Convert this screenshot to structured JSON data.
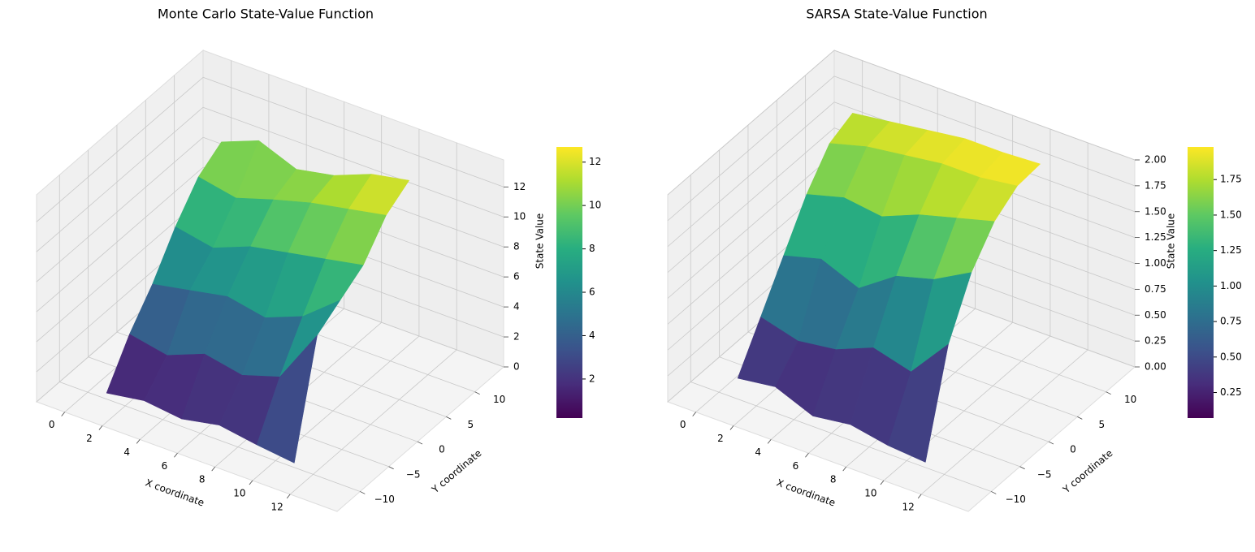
{
  "chart_data": [
    {
      "type": "surface",
      "title": "Monte Carlo State-Value Function",
      "xlabel": "X coordinate",
      "ylabel": "Y coordinate",
      "zlabel": "State Value",
      "colormap": "viridis",
      "x": [
        1,
        3,
        5,
        7,
        9,
        11
      ],
      "y": [
        -10,
        -6,
        -2,
        2,
        6,
        10
      ],
      "z": [
        [
          0.4,
          0.8,
          0.5,
          1.0,
          0.6,
          0.3
        ],
        [
          3.0,
          2.5,
          3.5,
          3.0,
          3.8,
          7.5
        ],
        [
          5.0,
          5.5,
          6.0,
          5.5,
          6.5,
          8.5
        ],
        [
          7.5,
          7.0,
          8.0,
          8.5,
          9.0,
          9.5
        ],
        [
          9.5,
          9.0,
          9.8,
          10.5,
          11.0,
          11.5
        ],
        [
          10.5,
          11.5,
          10.5,
          11.0,
          12.0,
          12.5
        ]
      ],
      "xlim": [
        -1.5,
        14.5
      ],
      "ylim": [
        -14,
        15
      ],
      "zlim": [
        0,
        13.8
      ],
      "xticks": [
        0,
        2,
        4,
        6,
        8,
        10,
        12
      ],
      "yticks": [
        {
          "value": -10,
          "label": "−10"
        },
        {
          "value": -5,
          "label": "−5"
        },
        0,
        5,
        10
      ],
      "zticks": [
        0,
        2,
        4,
        6,
        8,
        10,
        12
      ],
      "colorbar": {
        "lim": [
          0.2,
          12.7
        ],
        "ticks": [
          2,
          4,
          6,
          8,
          10,
          12
        ]
      }
    },
    {
      "type": "surface",
      "title": "SARSA State-Value Function",
      "xlabel": "X coordinate",
      "ylabel": "Y coordinate",
      "zlabel": "State Value",
      "colormap": "viridis",
      "x": [
        1,
        3,
        5,
        7,
        9,
        11
      ],
      "y": [
        -10,
        -6,
        -2,
        2,
        6,
        10
      ],
      "z": [
        [
          0.2,
          0.25,
          0.1,
          0.15,
          0.08,
          0.05
        ],
        [
          0.6,
          0.5,
          0.55,
          0.7,
          0.6,
          1.0
        ],
        [
          1.0,
          1.1,
          0.95,
          1.2,
          1.3,
          1.5
        ],
        [
          1.4,
          1.5,
          1.45,
          1.6,
          1.7,
          1.8
        ],
        [
          1.7,
          1.8,
          1.85,
          1.9,
          1.9,
          1.95
        ],
        [
          1.8,
          1.85,
          1.9,
          1.95,
          1.95,
          1.97
        ]
      ],
      "xlim": [
        -1.5,
        14.5
      ],
      "ylim": [
        -14,
        15
      ],
      "zlim": [
        0,
        2
      ],
      "xticks": [
        0,
        2,
        4,
        6,
        8,
        10,
        12
      ],
      "yticks": [
        {
          "value": -10,
          "label": "−10"
        },
        {
          "value": -5,
          "label": "−5"
        },
        0,
        5,
        10
      ],
      "zticks": [
        {
          "value": 0,
          "label": "0.00"
        },
        0.25,
        {
          "value": 0.5,
          "label": "0.50"
        },
        0.75,
        {
          "value": 1,
          "label": "1.00"
        },
        1.25,
        {
          "value": 1.5,
          "label": "1.50"
        },
        1.75,
        {
          "value": 2,
          "label": "2.00"
        }
      ],
      "colorbar": {
        "lim": [
          0.07,
          1.98
        ],
        "ticks": [
          0.25,
          {
            "value": 0.5,
            "label": "0.50"
          },
          0.75,
          {
            "value": 1,
            "label": "1.00"
          },
          1.25,
          {
            "value": 1.5,
            "label": "1.50"
          },
          1.75
        ]
      }
    }
  ]
}
